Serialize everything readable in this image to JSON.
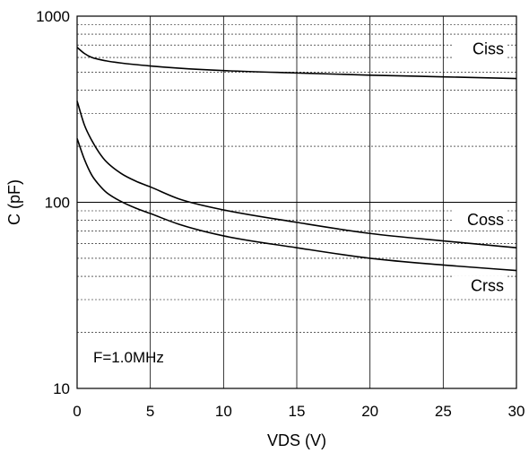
{
  "chart_data": {
    "type": "line",
    "title": "",
    "xlabel": "VDS (V)",
    "ylabel": "C (pF)",
    "xlim": [
      0,
      30
    ],
    "ylim": [
      10,
      1000
    ],
    "yscale": "log",
    "grid": true,
    "x_ticks": [
      0,
      5,
      10,
      15,
      20,
      25,
      30
    ],
    "x_tick_labels": [
      "0",
      "5",
      "10",
      "15",
      "20",
      "25",
      "30"
    ],
    "y_ticks": [
      10,
      100,
      1000
    ],
    "y_tick_labels": [
      "10",
      "100",
      "1000"
    ],
    "annotation": "F=1.0MHz",
    "series": [
      {
        "name": "Ciss",
        "x": [
          0,
          0.5,
          1,
          2,
          3,
          5,
          7,
          10,
          15,
          20,
          25,
          30
        ],
        "y": [
          680,
          630,
          600,
          575,
          560,
          540,
          525,
          510,
          495,
          482,
          472,
          462
        ]
      },
      {
        "name": "Coss",
        "x": [
          0,
          0.5,
          1,
          1.5,
          2,
          3,
          4,
          5,
          7,
          10,
          15,
          20,
          25,
          30
        ],
        "y": [
          350,
          260,
          215,
          185,
          165,
          143,
          130,
          121,
          104,
          91,
          78,
          68,
          62,
          57
        ]
      },
      {
        "name": "Crss",
        "x": [
          0,
          0.5,
          1,
          1.5,
          2,
          3,
          4,
          5,
          7,
          10,
          15,
          20,
          25,
          30
        ],
        "y": [
          220,
          170,
          140,
          124,
          113,
          101,
          93,
          87,
          76,
          66,
          57,
          50,
          46,
          43
        ]
      }
    ]
  }
}
